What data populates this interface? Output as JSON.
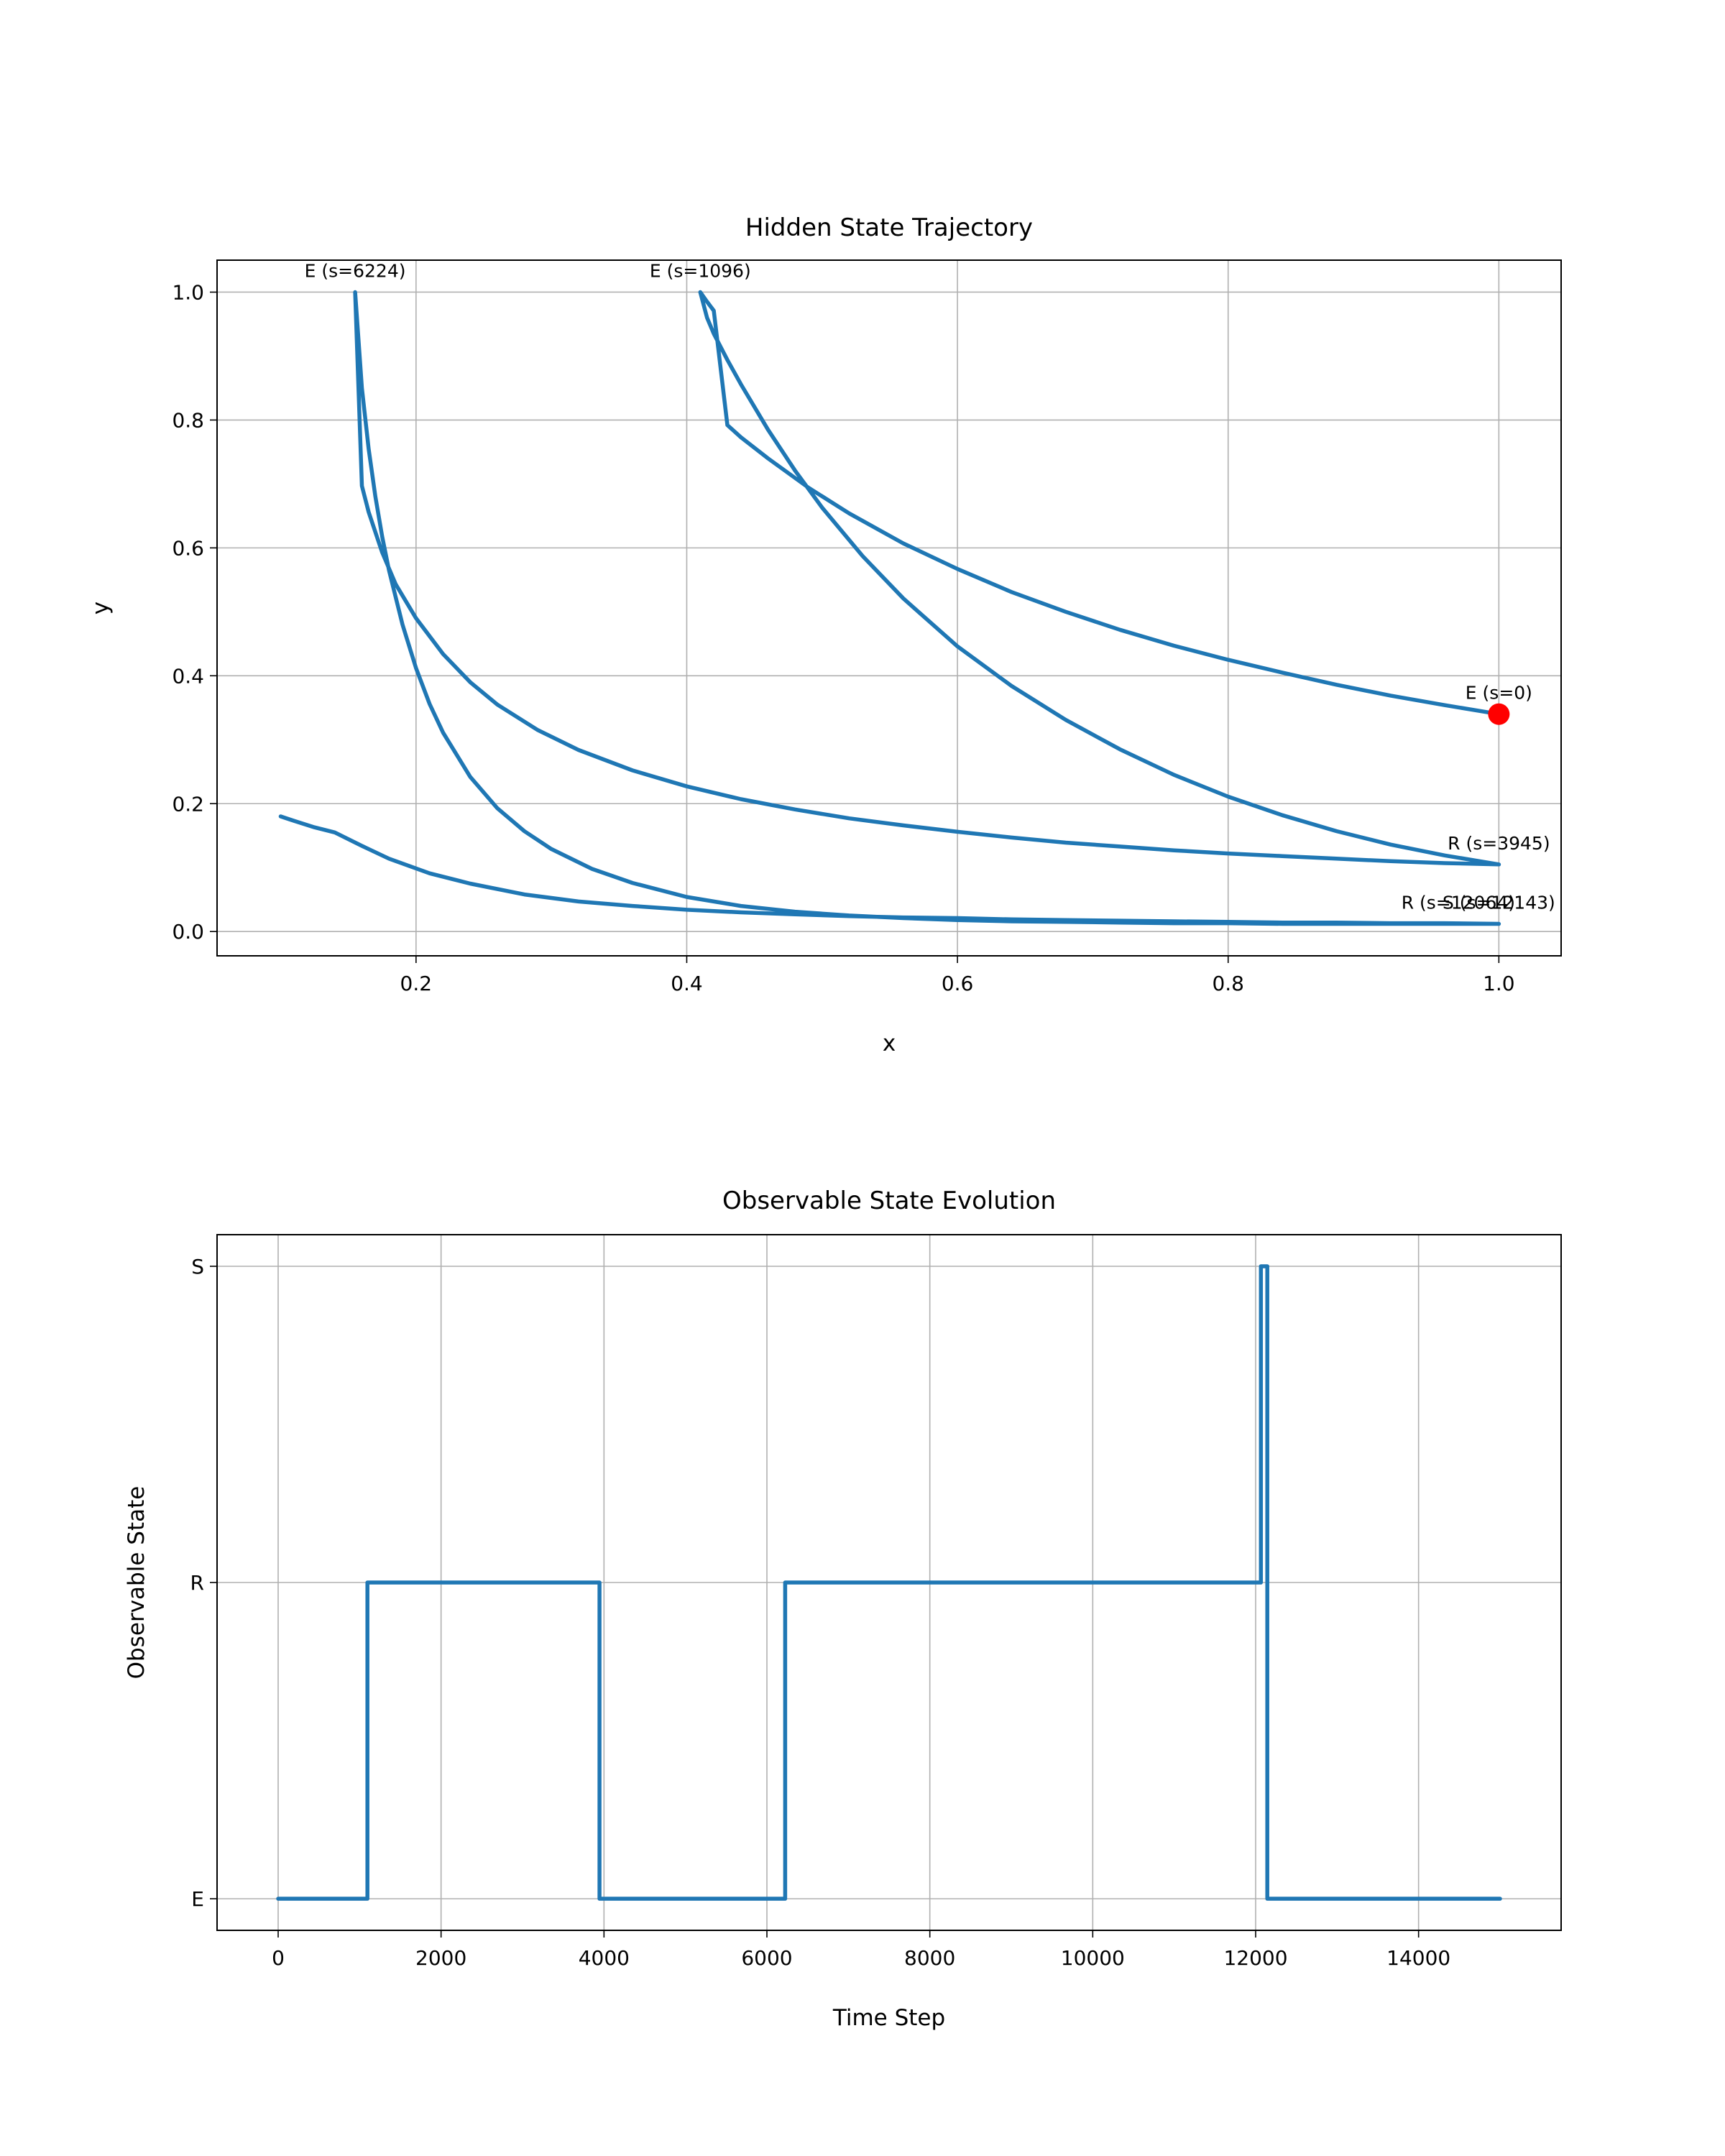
{
  "colors": {
    "line": "#1f77b4",
    "marker": "#ff0000",
    "grid": "#b0b0b0",
    "axes": "#000000",
    "background": "#ffffff"
  },
  "chart_data": [
    {
      "type": "line",
      "title": "Hidden State Trajectory",
      "xlabel": "x",
      "ylabel": "y",
      "xlim": [
        0.053,
        1.046
      ],
      "ylim": [
        -0.038,
        1.05
      ],
      "xticks": [
        "0.2",
        "0.4",
        "0.6",
        "0.8",
        "1.0"
      ],
      "xtick_values": [
        0.2,
        0.4,
        0.6,
        0.8,
        1.0
      ],
      "yticks": [
        "0.0",
        "0.2",
        "0.4",
        "0.6",
        "0.8",
        "1.0"
      ],
      "ytick_values": [
        0.0,
        0.2,
        0.4,
        0.6,
        0.8,
        1.0
      ],
      "grid": true,
      "series": [
        {
          "x": [
            1.0,
            0.96,
            0.92,
            0.88,
            0.84,
            0.8,
            0.76,
            0.72,
            0.68,
            0.64,
            0.6,
            0.56,
            0.52,
            0.49,
            0.46,
            0.44,
            0.43,
            0.42,
            0.415,
            0.41,
            0.415,
            0.42,
            0.43,
            0.44,
            0.46,
            0.48,
            0.5,
            0.53,
            0.56,
            0.6,
            0.64,
            0.68,
            0.72,
            0.76,
            0.8,
            0.84,
            0.88,
            0.92,
            0.96,
            1.0,
            0.96,
            0.92,
            0.88,
            0.84,
            0.8,
            0.76,
            0.72,
            0.68,
            0.64,
            0.6,
            0.56,
            0.52,
            0.48,
            0.44,
            0.4,
            0.36,
            0.32,
            0.29,
            0.26,
            0.24,
            0.22,
            0.2,
            0.185,
            0.175,
            0.165,
            0.16,
            0.155,
            0.16,
            0.165,
            0.17,
            0.175,
            0.18,
            0.19,
            0.2,
            0.21,
            0.22,
            0.24,
            0.26,
            0.28,
            0.3,
            0.33,
            0.36,
            0.4,
            0.44,
            0.48,
            0.52,
            0.56,
            0.6,
            0.64,
            0.68,
            0.72,
            0.76,
            0.8,
            0.84,
            0.88,
            0.92,
            0.96,
            1.0,
            0.96,
            0.92,
            0.88,
            0.84,
            0.8,
            0.76,
            0.72,
            0.68,
            0.64,
            0.6,
            0.56,
            0.52,
            0.48,
            0.44,
            0.4,
            0.36,
            0.32,
            0.28,
            0.24,
            0.21,
            0.18,
            0.16,
            0.14,
            0.125,
            0.11,
            0.1
          ],
          "y": [
            0.34,
            0.354,
            0.369,
            0.386,
            0.405,
            0.425,
            0.447,
            0.472,
            0.5,
            0.531,
            0.567,
            0.607,
            0.654,
            0.694,
            0.74,
            0.773,
            0.792,
            0.971,
            0.985,
            1.0,
            0.96,
            0.935,
            0.894,
            0.856,
            0.785,
            0.721,
            0.663,
            0.587,
            0.521,
            0.446,
            0.384,
            0.331,
            0.285,
            0.245,
            0.211,
            0.182,
            0.157,
            0.136,
            0.119,
            0.105,
            0.107,
            0.11,
            0.114,
            0.118,
            0.122,
            0.127,
            0.133,
            0.139,
            0.147,
            0.156,
            0.166,
            0.177,
            0.191,
            0.207,
            0.227,
            0.252,
            0.284,
            0.315,
            0.355,
            0.39,
            0.434,
            0.49,
            0.543,
            0.593,
            0.656,
            0.697,
            1.0,
            0.85,
            0.755,
            0.68,
            0.618,
            0.565,
            0.48,
            0.412,
            0.356,
            0.311,
            0.242,
            0.193,
            0.157,
            0.129,
            0.098,
            0.076,
            0.054,
            0.04,
            0.031,
            0.025,
            0.021,
            0.018,
            0.016,
            0.015,
            0.014,
            0.013,
            0.013,
            0.012,
            0.012,
            0.012,
            0.012,
            0.012,
            0.013,
            0.013,
            0.014,
            0.014,
            0.015,
            0.016,
            0.017,
            0.018,
            0.019,
            0.021,
            0.022,
            0.024,
            0.027,
            0.03,
            0.034,
            0.04,
            0.047,
            0.058,
            0.075,
            0.091,
            0.114,
            0.134,
            0.155,
            0.163,
            0.173,
            0.18
          ]
        }
      ],
      "markers": [
        {
          "x": 1.0,
          "y": 0.34
        }
      ],
      "annotations": [
        {
          "text": "E (s=6224)",
          "x": 0.155,
          "y": 1.0
        },
        {
          "text": "E (s=1096)",
          "x": 0.41,
          "y": 1.0
        },
        {
          "text": "E (s=0)",
          "x": 1.0,
          "y": 0.34
        },
        {
          "text": "R (s=3945)",
          "x": 1.0,
          "y": 0.105
        },
        {
          "text": "R (s=12064)",
          "x": 0.97,
          "y": 0.012
        },
        {
          "text": "S (s=12143)",
          "x": 1.0,
          "y": 0.012
        }
      ]
    },
    {
      "type": "line",
      "step": true,
      "title": "Observable State Evolution",
      "xlabel": "Time Step",
      "ylabel": "Observable State",
      "xlim": [
        -750,
        15750
      ],
      "ylim": [
        -0.1,
        2.1
      ],
      "xticks": [
        "0",
        "2000",
        "4000",
        "6000",
        "8000",
        "10000",
        "12000",
        "14000"
      ],
      "xtick_values": [
        0,
        2000,
        4000,
        6000,
        8000,
        10000,
        12000,
        14000
      ],
      "yticks": [
        "E",
        "R",
        "S"
      ],
      "ytick_values": [
        0,
        1,
        2
      ],
      "grid": true,
      "series": [
        {
          "x": [
            0,
            1096,
            1096,
            3945,
            3945,
            6224,
            6224,
            12064,
            12064,
            12143,
            12143,
            15000
          ],
          "y": [
            0,
            0,
            1,
            1,
            0,
            0,
            1,
            1,
            2,
            2,
            0,
            0
          ]
        }
      ]
    }
  ]
}
